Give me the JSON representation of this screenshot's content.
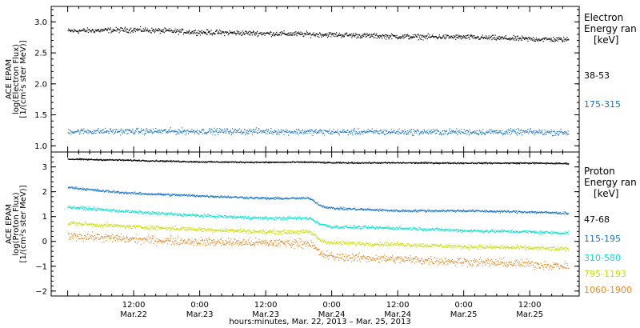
{
  "chart_data": [
    {
      "type": "scatter",
      "panel": "electron",
      "ylabel_lines": [
        "ACE EPAM",
        "log(Electron Flux)",
        "[1/(cm²s ster MeV)]"
      ],
      "ylim": [
        0.9,
        3.25
      ],
      "yticks": [
        {
          "v": 3.0,
          "label": "3.0"
        },
        {
          "v": 2.5,
          "label": "2.5"
        },
        {
          "v": 2.0,
          "label": "2.0"
        },
        {
          "v": 1.5,
          "label": "1.5"
        },
        {
          "v": 1.0,
          "label": "1.0"
        }
      ],
      "legend_title": [
        "Electron",
        "Energy ran",
        "[keV]"
      ],
      "series": [
        {
          "name": "38-53",
          "color": "#000000",
          "x": [
            0,
            12,
            24,
            36,
            48,
            60,
            72,
            84,
            91
          ],
          "y": [
            2.86,
            2.88,
            2.84,
            2.82,
            2.8,
            2.77,
            2.76,
            2.73,
            2.72
          ],
          "scatter": 0.06
        },
        {
          "name": "175-315",
          "color": "#1874cd",
          "x": [
            0,
            12,
            24,
            36,
            48,
            60,
            72,
            84,
            91
          ],
          "y": [
            1.24,
            1.24,
            1.24,
            1.24,
            1.23,
            1.23,
            1.23,
            1.23,
            1.22
          ],
          "scatter": 0.07
        }
      ]
    },
    {
      "type": "scatter",
      "panel": "proton",
      "ylabel_lines": [
        "ACE EPAM",
        "log(Proton Flux)",
        "[1/(cm²s ster MeV)]"
      ],
      "ylim": [
        -2.2,
        3.6
      ],
      "yticks": [
        {
          "v": 3,
          "label": "3"
        },
        {
          "v": 2,
          "label": "2"
        },
        {
          "v": 1,
          "label": "1"
        },
        {
          "v": 0,
          "label": "0"
        },
        {
          "v": -1,
          "label": "−1"
        },
        {
          "v": -2,
          "label": "−2"
        }
      ],
      "legend_title": [
        "Proton",
        "Energy ran",
        "[keV]"
      ],
      "series": [
        {
          "name": "47-68",
          "color": "#000000",
          "x": [
            0,
            12,
            24,
            36,
            44,
            48,
            60,
            72,
            84,
            91
          ],
          "y": [
            3.33,
            3.28,
            3.22,
            3.2,
            3.21,
            3.18,
            3.18,
            3.17,
            3.17,
            3.15
          ],
          "scatter": 0.04
        },
        {
          "name": "115-195",
          "color": "#1874cd",
          "x": [
            0,
            6,
            12,
            24,
            36,
            44,
            46,
            48,
            60,
            72,
            84,
            91
          ],
          "y": [
            2.2,
            2.05,
            1.95,
            1.85,
            1.75,
            1.75,
            1.45,
            1.35,
            1.25,
            1.25,
            1.2,
            1.15
          ],
          "scatter": 0.07
        },
        {
          "name": "310-580",
          "color": "#00e5cc",
          "x": [
            0,
            12,
            24,
            36,
            44,
            46,
            48,
            60,
            72,
            84,
            91
          ],
          "y": [
            1.4,
            1.2,
            1.05,
            0.95,
            0.95,
            0.7,
            0.6,
            0.55,
            0.45,
            0.4,
            0.35
          ],
          "scatter": 0.09
        },
        {
          "name": "795-1193",
          "color": "#c8e000",
          "x": [
            0,
            12,
            24,
            36,
            44,
            46,
            48,
            60,
            72,
            84,
            91
          ],
          "y": [
            0.75,
            0.6,
            0.5,
            0.4,
            0.4,
            0.05,
            -0.05,
            -0.1,
            -0.2,
            -0.25,
            -0.3
          ],
          "scatter": 0.12
        },
        {
          "name": "1060-1900",
          "color": "#ee8822",
          "x": [
            0,
            12,
            24,
            36,
            44,
            46,
            48,
            60,
            72,
            84,
            91
          ],
          "y": [
            0.25,
            0.1,
            0.0,
            -0.05,
            -0.05,
            -0.5,
            -0.6,
            -0.7,
            -0.8,
            -0.9,
            -1.0
          ],
          "scatter": 0.25
        }
      ]
    }
  ],
  "x_axis": {
    "xlim_hours": [
      -3,
      93
    ],
    "ticks": [
      {
        "h": 12,
        "time": "12:00",
        "date": "Mar.22"
      },
      {
        "h": 24,
        "time": "0:00",
        "date": "Mar.23"
      },
      {
        "h": 36,
        "time": "12:00",
        "date": "Mar.23"
      },
      {
        "h": 48,
        "time": "0:00",
        "date": "Mar.24"
      },
      {
        "h": 60,
        "time": "12:00",
        "date": "Mar.24"
      },
      {
        "h": 72,
        "time": "0:00",
        "date": "Mar.25"
      },
      {
        "h": 84,
        "time": "12:00",
        "date": "Mar.25"
      }
    ],
    "label": "hours:minutes, Mar. 22, 2013 – Mar. 25, 2013"
  }
}
